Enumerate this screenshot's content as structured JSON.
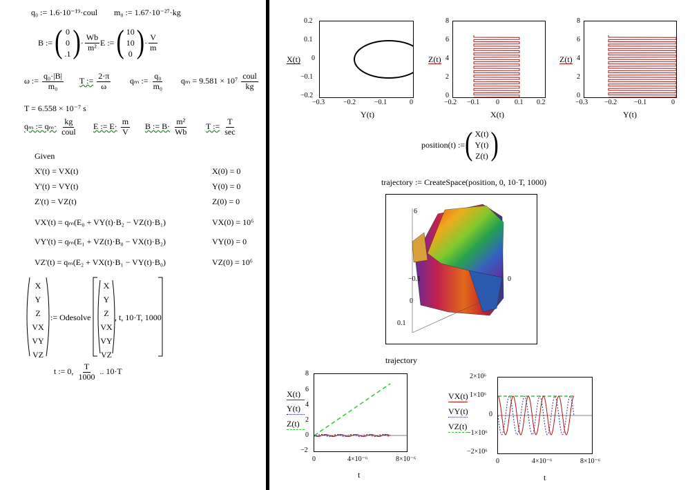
{
  "left": {
    "q0_def": "q₀ := 1.6·10⁻¹⁹·coul",
    "m0_def": "m₀ := 1.67·10⁻²⁷·kg",
    "B_vec": [
      "0",
      "0",
      ".1"
    ],
    "B_units": [
      "Wb",
      "m²"
    ],
    "E_vec": [
      "10",
      "10",
      "0"
    ],
    "E_units": [
      "V",
      "m"
    ],
    "omega_def": "ω :=",
    "omega_frac": [
      "q₀·|B|",
      "m₀"
    ],
    "T_def": "T :=",
    "T_frac": [
      "2·π",
      "ω"
    ],
    "qm_def": "qₘ :=",
    "qm_frac": [
      "q₀",
      "m₀"
    ],
    "qm_result": "qₘ = 9.581 × 10⁷",
    "qm_result_units": [
      "coul",
      "kg"
    ],
    "T_result": "T = 6.558 × 10⁻⁷ s",
    "qm_redef": "qₘ := qₘ·",
    "qm_redef_frac": [
      "kg",
      "coul"
    ],
    "E_redef": "E := E·",
    "E_redef_frac": [
      "m",
      "V"
    ],
    "B_redef": "B := B·",
    "B_redef_frac": [
      "m²",
      "Wb"
    ],
    "T_redef": "T :=",
    "T_redef_frac": [
      "T",
      "sec"
    ],
    "given": "Given",
    "ode_lines": [
      "X'(t) = VX(t)",
      "Y'(t) = VY(t)",
      "Z'(t) = VZ(t)",
      "VX'(t) = qₘ(E₀ + VY(t)·B₂ − VZ(t)·B₁)",
      "VY'(t) = qₘ(E₁ + VZ(t)·B₀ − VX(t)·B₂)",
      "VZ'(t) = qₘ(E₂ + VX(t)·B₁ − VY(t)·B₀)"
    ],
    "ic_lines": [
      "X(0) = 0",
      "Y(0) = 0",
      "Z(0) = 0",
      "VX(0) = 10⁶",
      "VY(0) = 0",
      "VZ(0) = 10⁶"
    ],
    "odesolve_vars": [
      "X",
      "Y",
      "Z",
      "VX",
      "VY",
      "VZ"
    ],
    "odesolve_label": ":= Odesolve",
    "odesolve_args": ", t, 10·T, 1000",
    "t_range": "t := 0,",
    "t_range_frac": [
      "T",
      "1000"
    ],
    "t_range_end": ".. 10·T"
  },
  "plot1": {
    "ylabel": "X(t)",
    "xlabel": "Y(t)",
    "yticks": [
      "0.2",
      "0.1",
      "0",
      "−0.1",
      "−0.2"
    ],
    "xticks": [
      "−0.3",
      "−0.2",
      "−0.1",
      "0"
    ]
  },
  "plot2": {
    "ylabel": "Z(t)",
    "xlabel": "X(t)",
    "yticks": [
      "8",
      "6",
      "4",
      "2",
      "0"
    ],
    "xticks": [
      "−0.2",
      "−0.1",
      "0",
      "0.1",
      "0.2"
    ]
  },
  "plot3": {
    "ylabel": "Z(t)",
    "xlabel": "Y(t)",
    "yticks": [
      "8",
      "6",
      "4",
      "2",
      "0"
    ],
    "xticks": [
      "−0.3",
      "−0.2",
      "−0.1",
      "0"
    ]
  },
  "position_def": "position(t) :=",
  "position_vec": [
    "X(t)",
    "Y(t)",
    "Z(t)"
  ],
  "trajectory_def": "trajectory := CreateSpace(position, 0, 10·T, 1000)",
  "surface_labels": [
    "6",
    "−0.1",
    "0",
    "0.1",
    "0"
  ],
  "trajectory_caption": "trajectory",
  "plot4": {
    "legend": [
      "X(t)",
      "Y(t)",
      "Z(t)"
    ],
    "xlabel": "t",
    "yticks": [
      "8",
      "6",
      "4",
      "2",
      "0",
      "−2"
    ],
    "xticks": [
      "0",
      "4×10⁻⁶",
      "8×10⁻⁶"
    ]
  },
  "plot5": {
    "legend": [
      "VX(t)",
      "VY(t)",
      "VZ(t)"
    ],
    "xlabel": "t",
    "yticks": [
      "2×10⁶",
      "1×10⁶",
      "0",
      "−1×10⁶",
      "−2×10⁶"
    ],
    "xticks": [
      "0",
      "4×10⁻⁶",
      "8×10⁻⁶"
    ]
  },
  "colors": {
    "red": "#b01010",
    "green": "#2ec82e",
    "purple": "#3a2a7a",
    "blue": "#1020a0"
  }
}
